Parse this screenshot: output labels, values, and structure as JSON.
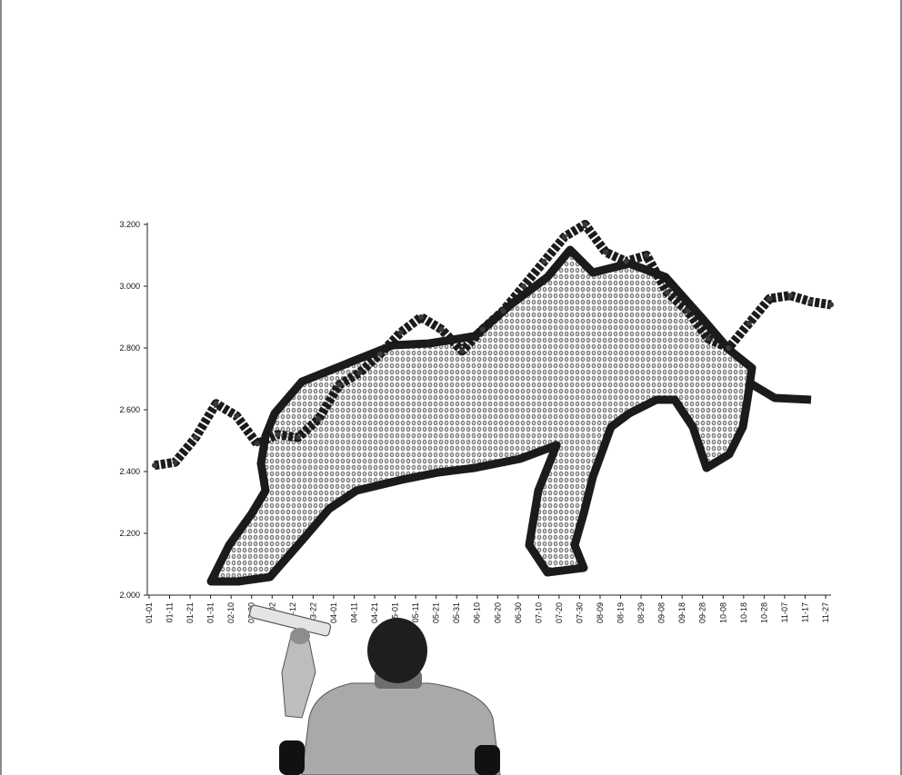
{
  "chart_data": {
    "type": "line",
    "title": "",
    "xlabel": "",
    "ylabel": "",
    "ylim": [
      2.0,
      3.2
    ],
    "yticks": [
      "3.200",
      "3.000",
      "2.800",
      "2.600",
      "2.400",
      "2.200",
      "2.000"
    ],
    "categories": [
      "01-01",
      "01-11",
      "01-21",
      "01-31",
      "02-10",
      "02-20",
      "03-02",
      "03-12",
      "03-22",
      "04-01",
      "04-11",
      "04-21",
      "05-01",
      "05-11",
      "05-21",
      "05-31",
      "06-10",
      "06-20",
      "06-30",
      "07-10",
      "07-20",
      "07-30",
      "08-09",
      "08-19",
      "08-29",
      "09-08",
      "09-18",
      "09-28",
      "10-08",
      "10-18",
      "10-28",
      "11-07",
      "11-17",
      "11-27"
    ],
    "series": [
      {
        "values": [
          2.42,
          2.43,
          2.51,
          2.62,
          2.58,
          2.49,
          2.52,
          2.51,
          2.57,
          2.68,
          2.72,
          2.78,
          2.85,
          2.9,
          2.86,
          2.79,
          2.86,
          2.92,
          3.0,
          3.08,
          3.16,
          3.2,
          3.11,
          3.08,
          3.1,
          2.98,
          2.92,
          2.83,
          2.8,
          2.88,
          2.96,
          2.97,
          2.95,
          2.94
        ]
      }
    ],
    "grid": false,
    "legend": "none"
  },
  "illustration": {
    "figure_icon": "person-holding-rolled-chart-icon",
    "bull_icon": "bull-silhouette-icon"
  }
}
